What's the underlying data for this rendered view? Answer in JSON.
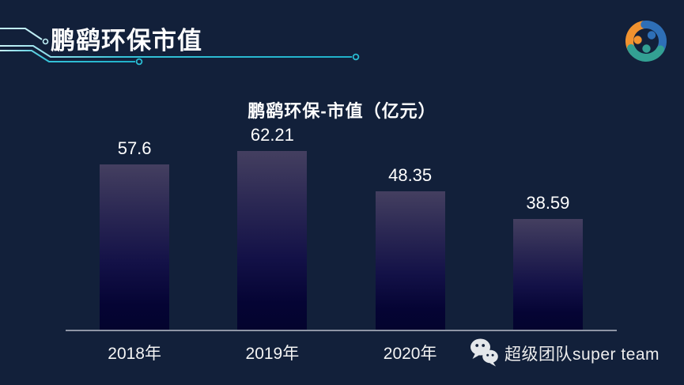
{
  "page": {
    "title": "鹏鹞环保市值",
    "background_color": "#12203a",
    "accent_color": "#35c2d8"
  },
  "chart_data": {
    "type": "bar",
    "title": "鹏鹞环保-市值（亿元）",
    "categories": [
      "2018年",
      "2019年",
      "2020年",
      ""
    ],
    "values": [
      57.6,
      62.21,
      48.35,
      38.59
    ],
    "xlabel": "",
    "ylabel": "",
    "ylim": [
      0,
      70
    ],
    "grid": false,
    "legend": "none",
    "bar_color_top": "#443f60",
    "bar_color_bottom": "#04042e",
    "axis_color": "#8e95a5",
    "value_label_color": "#ffffff"
  },
  "logo": {
    "name": "tri-color team logo",
    "orange": "#f0922f",
    "blue": "#2e6fb7",
    "teal": "#33a093"
  },
  "watermark": {
    "icon": "wechat-icon",
    "text": "超级团队super team",
    "color": "#ededed"
  }
}
